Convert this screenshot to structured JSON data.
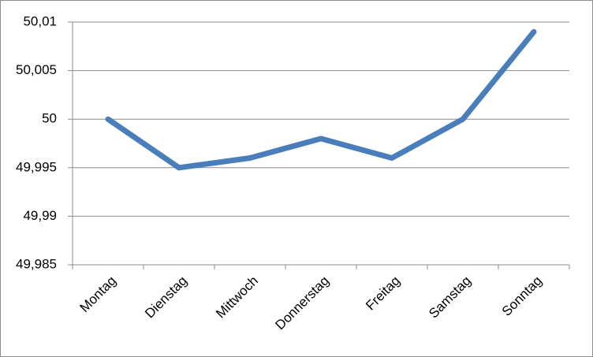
{
  "chart_data": {
    "type": "line",
    "categories": [
      "Montag",
      "Dienstag",
      "Mittwoch",
      "Donnerstag",
      "Freitag",
      "Samstag",
      "Sonntag"
    ],
    "values": [
      50,
      49.995,
      49.996,
      49.998,
      49.996,
      50,
      50.009
    ],
    "color": "#4a7ebb",
    "ylim": [
      49.985,
      50.01
    ],
    "yticks": [
      {
        "value": 49.985,
        "label": "49,985"
      },
      {
        "value": 49.99,
        "label": "49,99"
      },
      {
        "value": 49.995,
        "label": "49,995"
      },
      50,
      {
        "value": 50.005,
        "label": "50,005"
      },
      {
        "value": 50.01,
        "label": "50,01"
      }
    ],
    "grid": true
  }
}
